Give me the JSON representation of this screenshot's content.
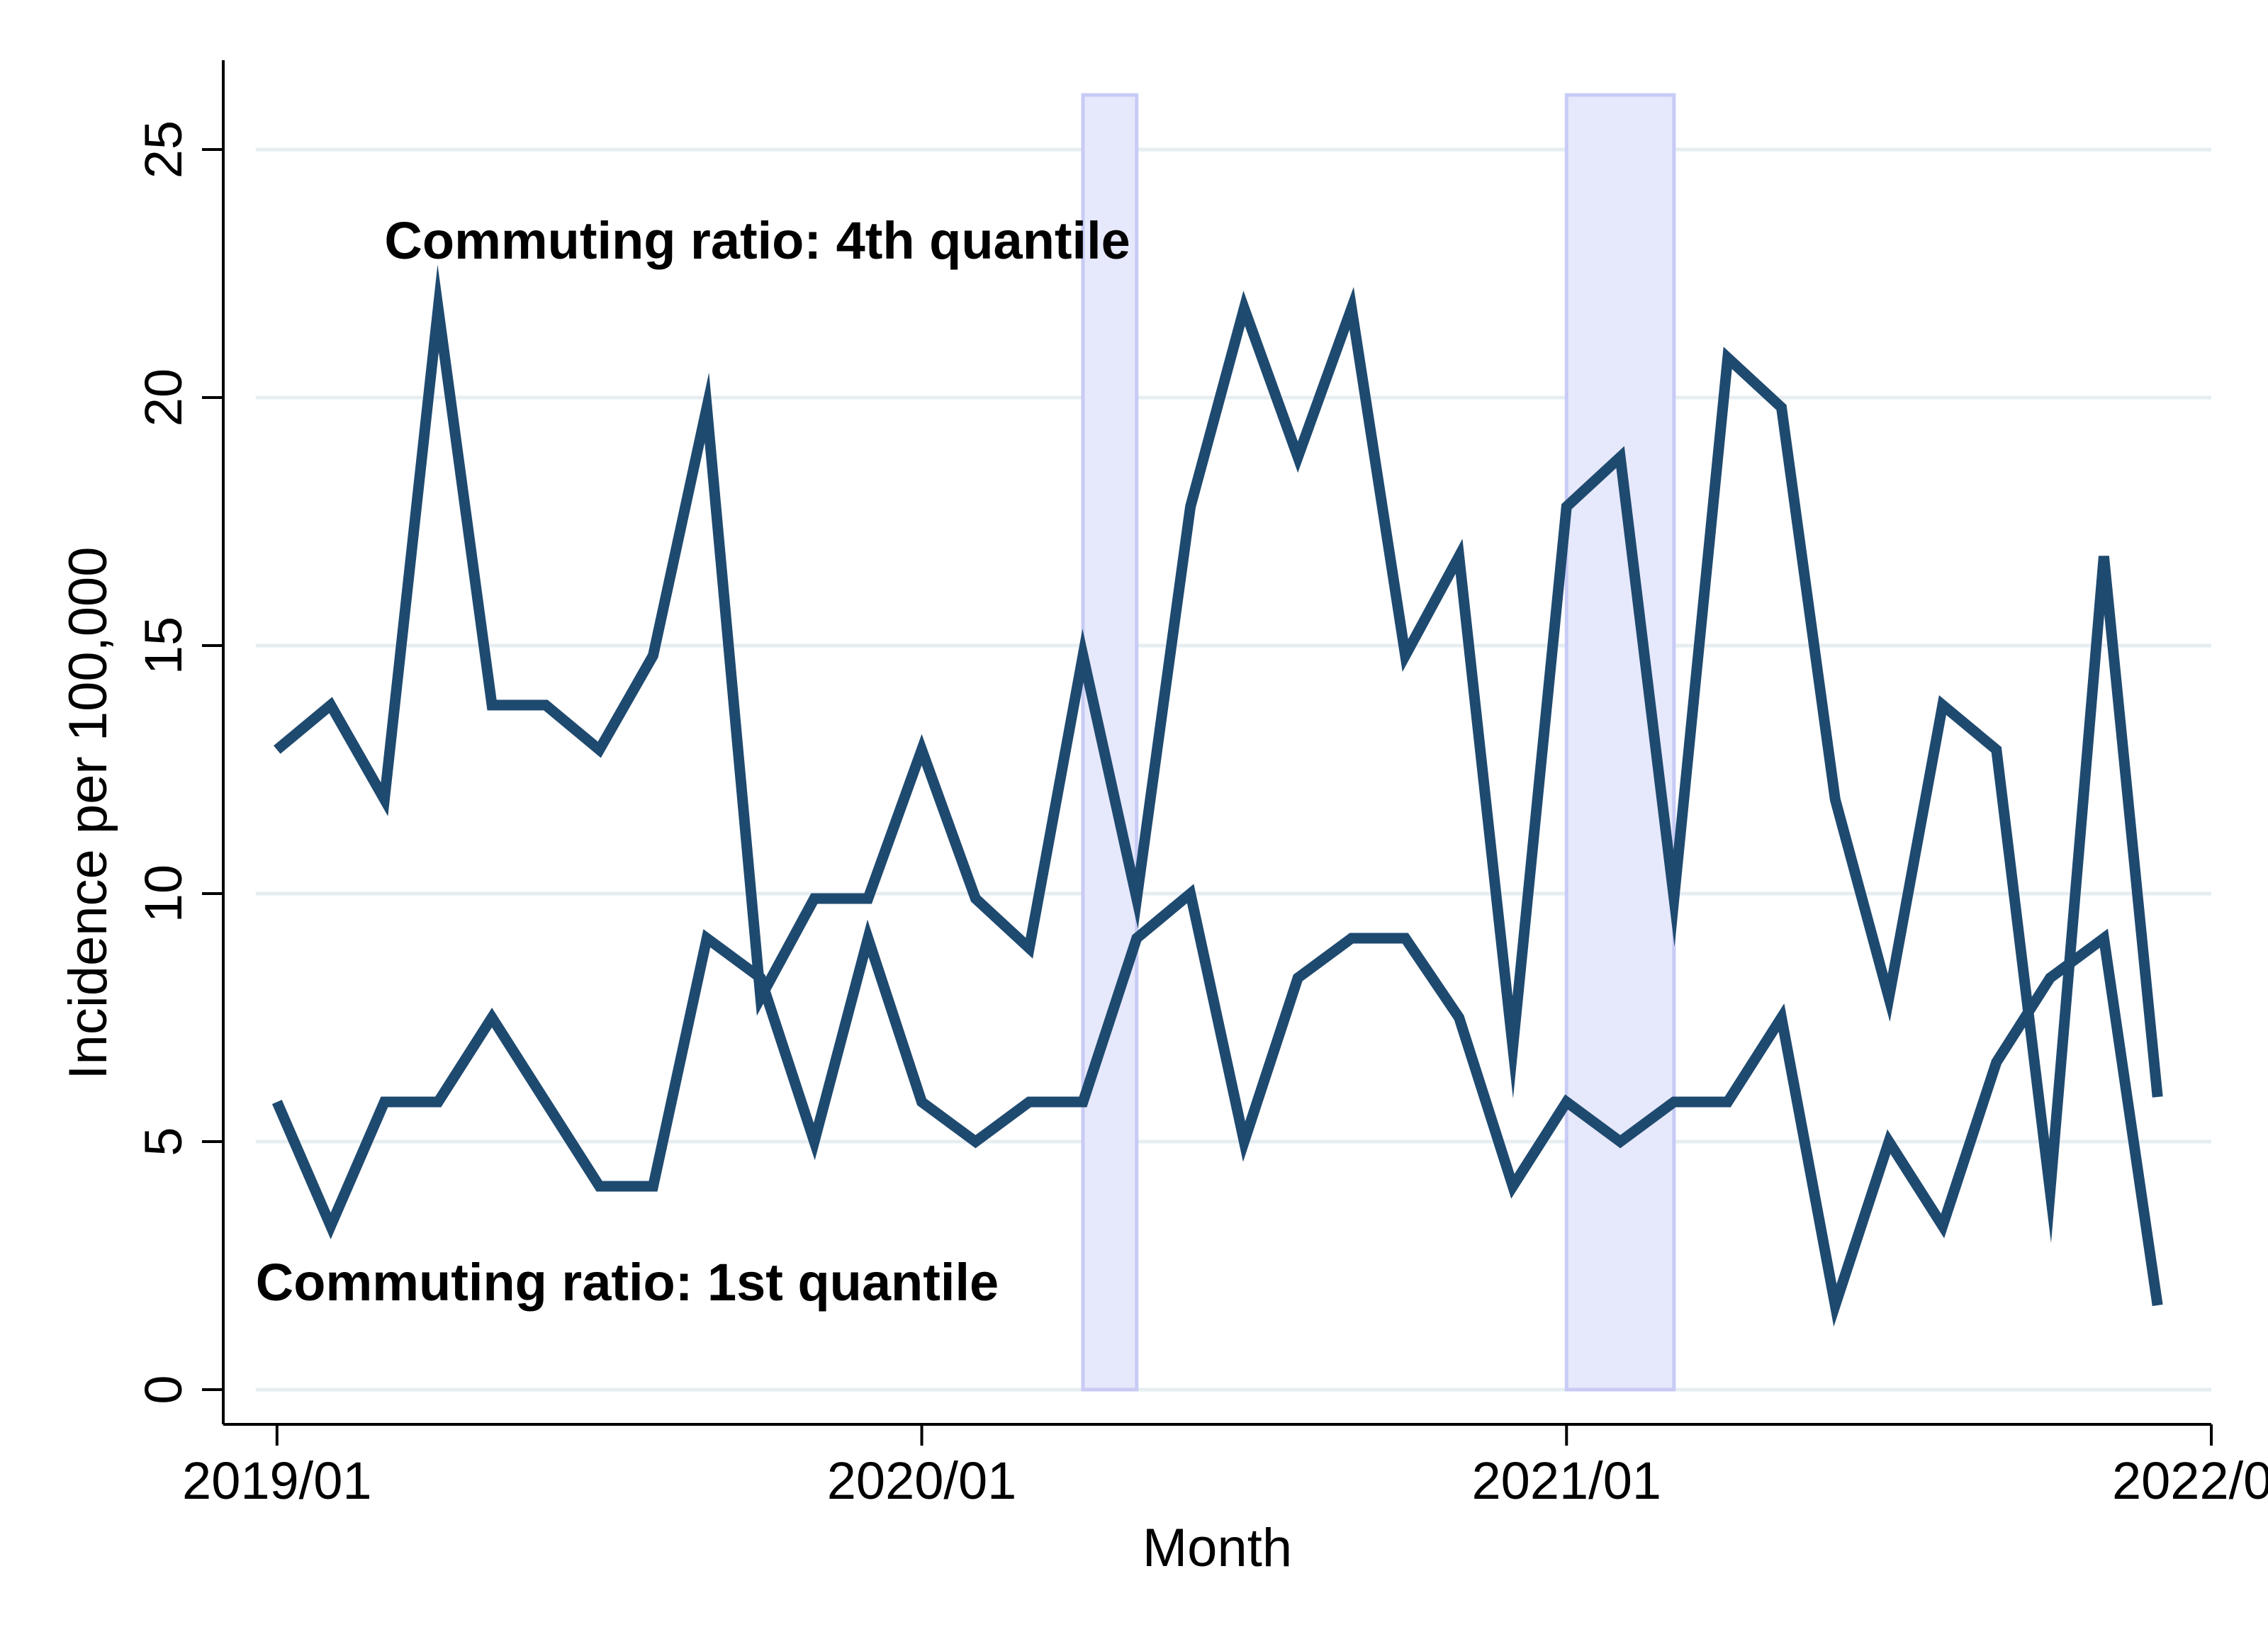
{
  "chart_data": {
    "type": "line",
    "title": "",
    "xlabel": "Month",
    "ylabel": "Incidence per 100,000",
    "x_tick_labels": [
      "2019/01",
      "2020/01",
      "2021/01",
      "2022/01"
    ],
    "x_tick_values": [
      "2019-01",
      "2020-01",
      "2021-01",
      "2022-01"
    ],
    "y_ticks": [
      0,
      5,
      10,
      15,
      20,
      25
    ],
    "ylim": [
      -0.7,
      26.8
    ],
    "xlim": [
      "2018-12",
      "2022-01"
    ],
    "grid": "horizontal",
    "line_color": "#1f4a70",
    "band_color": "#e6e8fb",
    "band_edge_color": "#c7cbf5",
    "grid_color": "#e6eef2",
    "x": [
      "2019-01",
      "2019-02",
      "2019-03",
      "2019-04",
      "2019-05",
      "2019-06",
      "2019-07",
      "2019-08",
      "2019-09",
      "2019-10",
      "2019-11",
      "2019-12",
      "2020-01",
      "2020-02",
      "2020-03",
      "2020-04",
      "2020-05",
      "2020-06",
      "2020-07",
      "2020-08",
      "2020-09",
      "2020-10",
      "2020-11",
      "2020-12",
      "2021-01",
      "2021-02",
      "2021-03",
      "2021-04",
      "2021-05",
      "2021-06",
      "2021-07",
      "2021-08",
      "2021-09",
      "2021-10",
      "2021-11",
      "2021-12"
    ],
    "series": [
      {
        "label_ref": "annotations.0",
        "values": [
          12.9,
          13.8,
          11.9,
          21.8,
          13.8,
          13.8,
          12.9,
          14.8,
          19.8,
          7.9,
          9.9,
          9.9,
          12.9,
          9.9,
          8.9,
          14.8,
          9.9,
          17.8,
          21.8,
          18.8,
          21.8,
          14.8,
          16.8,
          6.9,
          17.8,
          18.8,
          9.9,
          20.8,
          19.8,
          11.9,
          7.9,
          13.8,
          12.9,
          4.0,
          16.8,
          5.9
        ]
      },
      {
        "label_ref": "annotations.1",
        "values": [
          5.8,
          3.3,
          5.8,
          5.8,
          7.5,
          5.8,
          4.1,
          4.1,
          9.1,
          8.3,
          5.0,
          9.1,
          5.8,
          5.0,
          5.8,
          5.8,
          9.1,
          10.0,
          5.0,
          8.3,
          9.1,
          9.1,
          7.5,
          4.1,
          5.8,
          5.0,
          5.8,
          5.8,
          7.5,
          1.7,
          5.0,
          3.3,
          6.6,
          8.3,
          9.1,
          1.7
        ]
      }
    ],
    "shaded_periods": [
      {
        "start": "2020-04",
        "end": "2020-05",
        "ymin": 0,
        "ymax": 26.1
      },
      {
        "start": "2021-01",
        "end": "2021-03",
        "ymin": 0,
        "ymax": 26.1
      }
    ],
    "annotations": [
      {
        "text": "Commuting ratio: 4th quantile",
        "x": "2019-03",
        "y": 22.8
      },
      {
        "text": "Commuting ratio: 1st quantile",
        "x": "2019-01",
        "y": 1.8
      }
    ]
  }
}
